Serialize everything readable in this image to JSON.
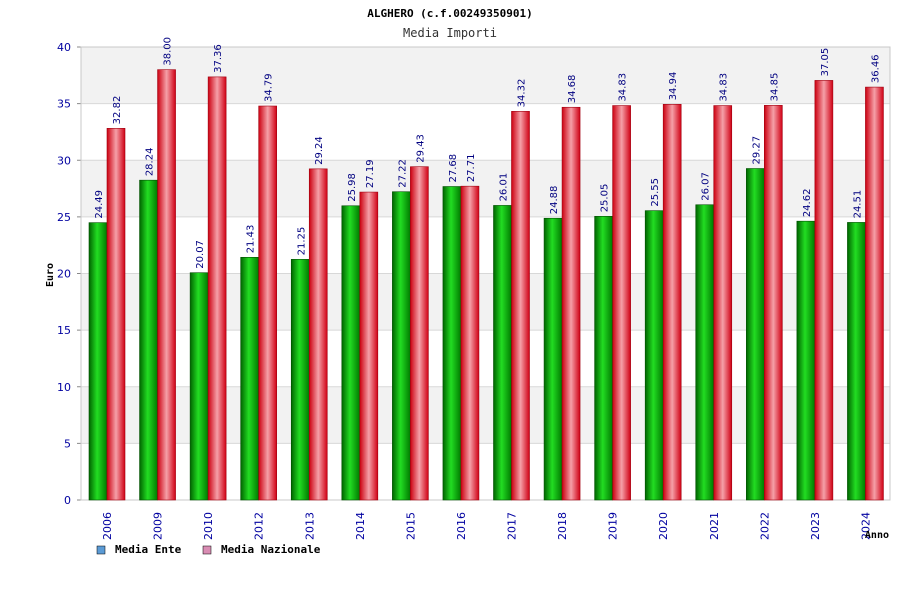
{
  "chart_data": {
    "type": "bar",
    "title": "ALGHERO (c.f.00249350901)",
    "subtitle": "Media Importi",
    "xlabel": "Anno",
    "ylabel": "Euro",
    "ylim": [
      0,
      40
    ],
    "yticks": [
      "0",
      "5",
      "10",
      "15",
      "20",
      "25",
      "30",
      "35",
      "40"
    ],
    "categories": [
      "2006",
      "2009",
      "2010",
      "2012",
      "2013",
      "2014",
      "2015",
      "2016",
      "2017",
      "2018",
      "2019",
      "2020",
      "2021",
      "2022",
      "2023",
      "2024"
    ],
    "series": [
      {
        "name": "Media Ente",
        "color": "#00a000",
        "legend_color": "#5b9bd5",
        "values": [
          24.49,
          28.24,
          20.07,
          21.43,
          21.25,
          25.98,
          27.22,
          27.68,
          26.01,
          24.88,
          25.05,
          25.55,
          26.07,
          29.27,
          24.62,
          24.51
        ],
        "labels": [
          "24.49",
          "28.24",
          "20.07",
          "21.43",
          "21.25",
          "25.98",
          "27.22",
          "27.68",
          "26.01",
          "24.88",
          "25.05",
          "25.55",
          "26.07",
          "29.27",
          "24.62",
          "24.51"
        ]
      },
      {
        "name": "Media Nazionale",
        "color": "#e0001a",
        "legend_color": "#d98cb3",
        "values": [
          32.82,
          38.0,
          37.36,
          34.79,
          29.24,
          27.19,
          29.43,
          27.71,
          34.32,
          34.68,
          34.83,
          34.94,
          34.83,
          34.85,
          37.05,
          36.46
        ],
        "labels": [
          "32.82",
          "38.00",
          "37.36",
          "34.79",
          "29.24",
          "27.19",
          "29.43",
          "27.71",
          "34.32",
          "34.68",
          "34.83",
          "34.94",
          "34.83",
          "34.85",
          "37.05",
          "36.46"
        ]
      }
    ],
    "legend_position": "bottom-left",
    "grid": true
  }
}
